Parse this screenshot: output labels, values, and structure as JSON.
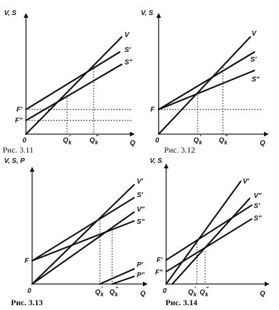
{
  "figures": [
    {
      "caption": "Рис. 3.11",
      "ylabel": "V, S",
      "xlabel": "Q",
      "origin": "0",
      "lines": [
        "V",
        "S'",
        "S\""
      ],
      "yticks": [
        "F'",
        "F\""
      ],
      "xticks": [
        "Q",
        "k",
        "'",
        "Q",
        "k",
        "\""
      ]
    },
    {
      "caption": "Рис. 3.12",
      "ylabel": "V, S",
      "xlabel": "Q",
      "origin": "0",
      "lines": [
        "V",
        "S'",
        "S\""
      ],
      "yticks": [
        "F"
      ],
      "xticks": [
        "Q",
        "k",
        "'",
        "Q",
        "k",
        "\""
      ]
    },
    {
      "caption": "Рис. 3.13",
      "ylabel": "V, S, P",
      "xlabel": "Q",
      "origin": "0",
      "lines": [
        "V'",
        "S'",
        "V\"",
        "S\"",
        "P'",
        "P\""
      ],
      "yticks": [
        "F"
      ],
      "xticks": [
        "Q",
        "k",
        "'",
        "Q",
        "k",
        "\""
      ]
    },
    {
      "caption": "Рис. 3.14",
      "ylabel": "V, S",
      "xlabel": "Q",
      "origin": "0",
      "lines": [
        "V'",
        "V\"",
        "S'",
        "S\""
      ],
      "yticks": [
        "F'",
        "F\""
      ],
      "xticks": [
        "Q",
        "k",
        "'",
        "Q",
        "k",
        "\""
      ]
    }
  ]
}
